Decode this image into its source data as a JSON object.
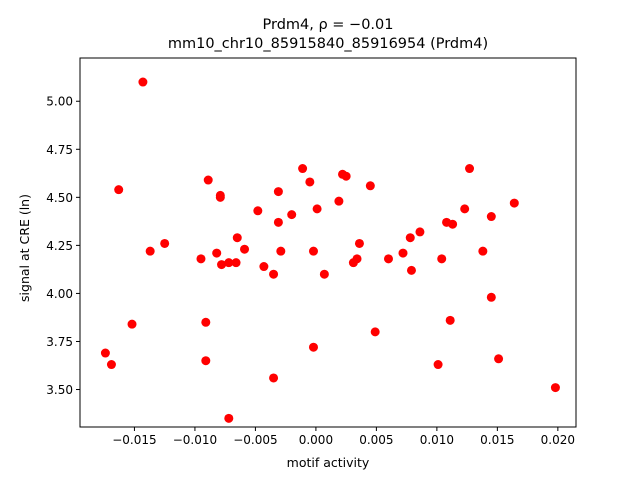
{
  "chart_data": {
    "type": "scatter",
    "title_line1": "Prdm4, ρ = −0.01",
    "title_line2": "mm10_chr10_85915840_85916954 (Prdm4)",
    "xlabel": "motif activity",
    "ylabel": "signal at CRE (ln)",
    "xlim": [
      -0.0195,
      0.0215
    ],
    "ylim": [
      3.305,
      5.225
    ],
    "x_ticks": [
      -0.015,
      -0.01,
      -0.005,
      0.0,
      0.005,
      0.01,
      0.015,
      0.02
    ],
    "x_tick_labels": [
      "−0.015",
      "−0.010",
      "−0.005",
      "0.000",
      "0.005",
      "0.010",
      "0.015",
      "0.020"
    ],
    "y_ticks": [
      3.5,
      3.75,
      4.0,
      4.25,
      4.5,
      4.75,
      5.0
    ],
    "y_tick_labels": [
      "3.50",
      "3.75",
      "4.00",
      "4.25",
      "4.50",
      "4.75",
      "5.00"
    ],
    "grid": false,
    "marker_color": "#ff0000",
    "points": [
      {
        "x": -0.0143,
        "y": 5.1
      },
      {
        "x": -0.0163,
        "y": 4.54
      },
      {
        "x": -0.0174,
        "y": 3.69
      },
      {
        "x": -0.0169,
        "y": 3.63
      },
      {
        "x": -0.0152,
        "y": 3.84
      },
      {
        "x": -0.0137,
        "y": 4.22
      },
      {
        "x": -0.0125,
        "y": 4.26
      },
      {
        "x": -0.0095,
        "y": 4.18
      },
      {
        "x": -0.0089,
        "y": 4.59
      },
      {
        "x": -0.0079,
        "y": 4.51
      },
      {
        "x": -0.0079,
        "y": 4.5
      },
      {
        "x": -0.0082,
        "y": 4.21
      },
      {
        "x": -0.0078,
        "y": 4.15
      },
      {
        "x": -0.0072,
        "y": 4.16
      },
      {
        "x": -0.0066,
        "y": 4.16
      },
      {
        "x": -0.0065,
        "y": 4.29
      },
      {
        "x": -0.0059,
        "y": 4.23
      },
      {
        "x": -0.0091,
        "y": 3.85
      },
      {
        "x": -0.0091,
        "y": 3.65
      },
      {
        "x": -0.0072,
        "y": 3.35
      },
      {
        "x": -0.0048,
        "y": 4.43
      },
      {
        "x": -0.0043,
        "y": 4.14
      },
      {
        "x": -0.0035,
        "y": 4.1
      },
      {
        "x": -0.0031,
        "y": 4.53
      },
      {
        "x": -0.0031,
        "y": 4.37
      },
      {
        "x": -0.0029,
        "y": 4.22
      },
      {
        "x": -0.002,
        "y": 4.41
      },
      {
        "x": -0.0035,
        "y": 3.56
      },
      {
        "x": -0.0011,
        "y": 4.65
      },
      {
        "x": -0.0005,
        "y": 4.58
      },
      {
        "x": -0.0002,
        "y": 4.22
      },
      {
        "x": 0.0001,
        "y": 4.44
      },
      {
        "x": -0.0002,
        "y": 3.72
      },
      {
        "x": 0.0007,
        "y": 4.1
      },
      {
        "x": 0.0019,
        "y": 4.48
      },
      {
        "x": 0.0022,
        "y": 4.62
      },
      {
        "x": 0.0025,
        "y": 4.61
      },
      {
        "x": 0.0031,
        "y": 4.16
      },
      {
        "x": 0.0034,
        "y": 4.18
      },
      {
        "x": 0.0036,
        "y": 4.26
      },
      {
        "x": 0.0045,
        "y": 4.56
      },
      {
        "x": 0.0049,
        "y": 3.8
      },
      {
        "x": 0.006,
        "y": 4.18
      },
      {
        "x": 0.0072,
        "y": 4.21
      },
      {
        "x": 0.0078,
        "y": 4.29
      },
      {
        "x": 0.0079,
        "y": 4.12
      },
      {
        "x": 0.0086,
        "y": 4.32
      },
      {
        "x": 0.0101,
        "y": 3.63
      },
      {
        "x": 0.0104,
        "y": 4.18
      },
      {
        "x": 0.0108,
        "y": 4.37
      },
      {
        "x": 0.0111,
        "y": 3.86
      },
      {
        "x": 0.0113,
        "y": 4.36
      },
      {
        "x": 0.0123,
        "y": 4.44
      },
      {
        "x": 0.0127,
        "y": 4.65
      },
      {
        "x": 0.0138,
        "y": 4.22
      },
      {
        "x": 0.0145,
        "y": 4.4
      },
      {
        "x": 0.0145,
        "y": 3.98
      },
      {
        "x": 0.0151,
        "y": 3.66
      },
      {
        "x": 0.0164,
        "y": 4.47
      },
      {
        "x": 0.0198,
        "y": 3.51
      }
    ]
  }
}
